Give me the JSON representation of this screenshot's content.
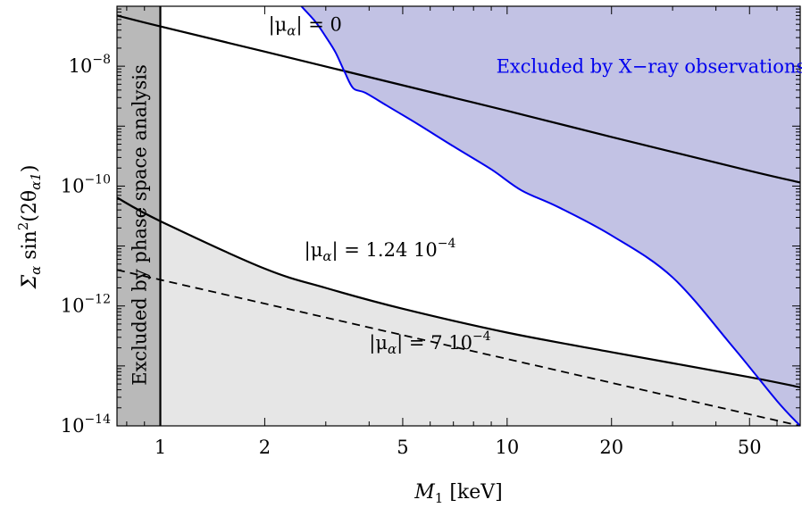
{
  "chart_data": {
    "type": "line",
    "title": "",
    "xlabel": "M",
    "xlabel_sub": "1",
    "xlabel_unit": " [keV]",
    "ylabel": "Σ",
    "ylabel_sub_alpha": "α",
    "ylabel_rest": " sin",
    "ylabel_sup": "2",
    "ylabel_tail": "(2θ",
    "ylabel_sub_alpha1": "α1",
    "ylabel_close": ")",
    "x_scale": "log",
    "y_scale": "log",
    "xlim": [
      0.75,
      70
    ],
    "ylim": [
      1e-14,
      1e-07
    ],
    "x_ticks": [
      {
        "value": 1,
        "label": "1"
      },
      {
        "value": 2,
        "label": "2"
      },
      {
        "value": 5,
        "label": "5"
      },
      {
        "value": 10,
        "label": "10"
      },
      {
        "value": 20,
        "label": "20"
      },
      {
        "value": 50,
        "label": "50"
      }
    ],
    "y_ticks": [
      {
        "value": 1e-14,
        "mantissa": "10",
        "exp": "−14"
      },
      {
        "value": 1e-12,
        "mantissa": "10",
        "exp": "−12"
      },
      {
        "value": 1e-10,
        "mantissa": "10",
        "exp": "−10"
      },
      {
        "value": 1e-08,
        "mantissa": "10",
        "exp": "−8"
      }
    ],
    "grid": false,
    "series": [
      {
        "id": "mu0",
        "label": "|μα| = 0",
        "style": "solid",
        "color": "#000000",
        "x": [
          0.75,
          1,
          2,
          5,
          10,
          20,
          50,
          70
        ],
        "y": [
          7e-08,
          4.6e-08,
          1.75e-08,
          4.8e-09,
          1.8e-09,
          6.6e-10,
          1.8e-10,
          1.15e-10
        ]
      },
      {
        "id": "mu124",
        "label": "|μα| = 1.24 10−4",
        "style": "solid",
        "color": "#000000",
        "x": [
          0.75,
          1,
          2,
          3,
          5,
          10,
          20,
          50,
          70
        ],
        "y": [
          6.4e-11,
          2.6e-11,
          4.2e-12,
          2e-12,
          9e-13,
          3.6e-13,
          1.7e-13,
          6.5e-14,
          4.4e-14
        ]
      },
      {
        "id": "mu7",
        "label": "|μα| = 7 10−4",
        "style": "dashed",
        "color": "#000000",
        "x": [
          0.75,
          70
        ],
        "y": [
          4e-12,
          1e-14
        ]
      },
      {
        "id": "xray",
        "label": "Excluded by X−ray observations",
        "style": "solid",
        "color": "#0000ee",
        "fill": "#c2c2e4",
        "x": [
          2.55,
          2.8,
          3.0,
          3.2,
          3.4,
          3.6,
          3.9,
          4.5,
          5.5,
          7,
          9,
          11,
          14,
          20,
          30,
          45,
          60,
          70
        ],
        "y": [
          1e-07,
          5.5e-08,
          3.1e-08,
          1.7e-08,
          8e-09,
          4.3e-09,
          3.6e-09,
          2.2e-09,
          1.1e-09,
          4.6e-10,
          1.9e-10,
          8.5e-11,
          4.5e-11,
          1.5e-11,
          3e-12,
          2e-13,
          2.6e-14,
          1e-14
        ]
      }
    ],
    "vline": {
      "x": 1,
      "label": "Excluded by phase space analysis",
      "fill": "#b9b9b9"
    },
    "shading": {
      "below_mu0_fill": "#e6e6e6"
    },
    "annotations": [
      {
        "id": "mu0-label",
        "prefix": "|μ",
        "sub": "α",
        "suffix": "| = 0",
        "exp": "",
        "x": 2.05,
        "y": 3.9e-08
      },
      {
        "id": "mu124-label",
        "prefix": "|μ",
        "sub": "α",
        "suffix": "| = 1.24 10",
        "exp": "−4",
        "x": 2.6,
        "y": 6.8e-12
      },
      {
        "id": "mu7-label",
        "prefix": "|μ",
        "sub": "α",
        "suffix": "| = 7 10",
        "exp": "−4",
        "x": 4.0,
        "y": 1.9e-13
      },
      {
        "id": "xray-label",
        "prefix": "Excluded by X−ray observations",
        "sub": "",
        "suffix": "",
        "exp": "",
        "x": 9.3,
        "y": 7.8e-09
      }
    ]
  }
}
